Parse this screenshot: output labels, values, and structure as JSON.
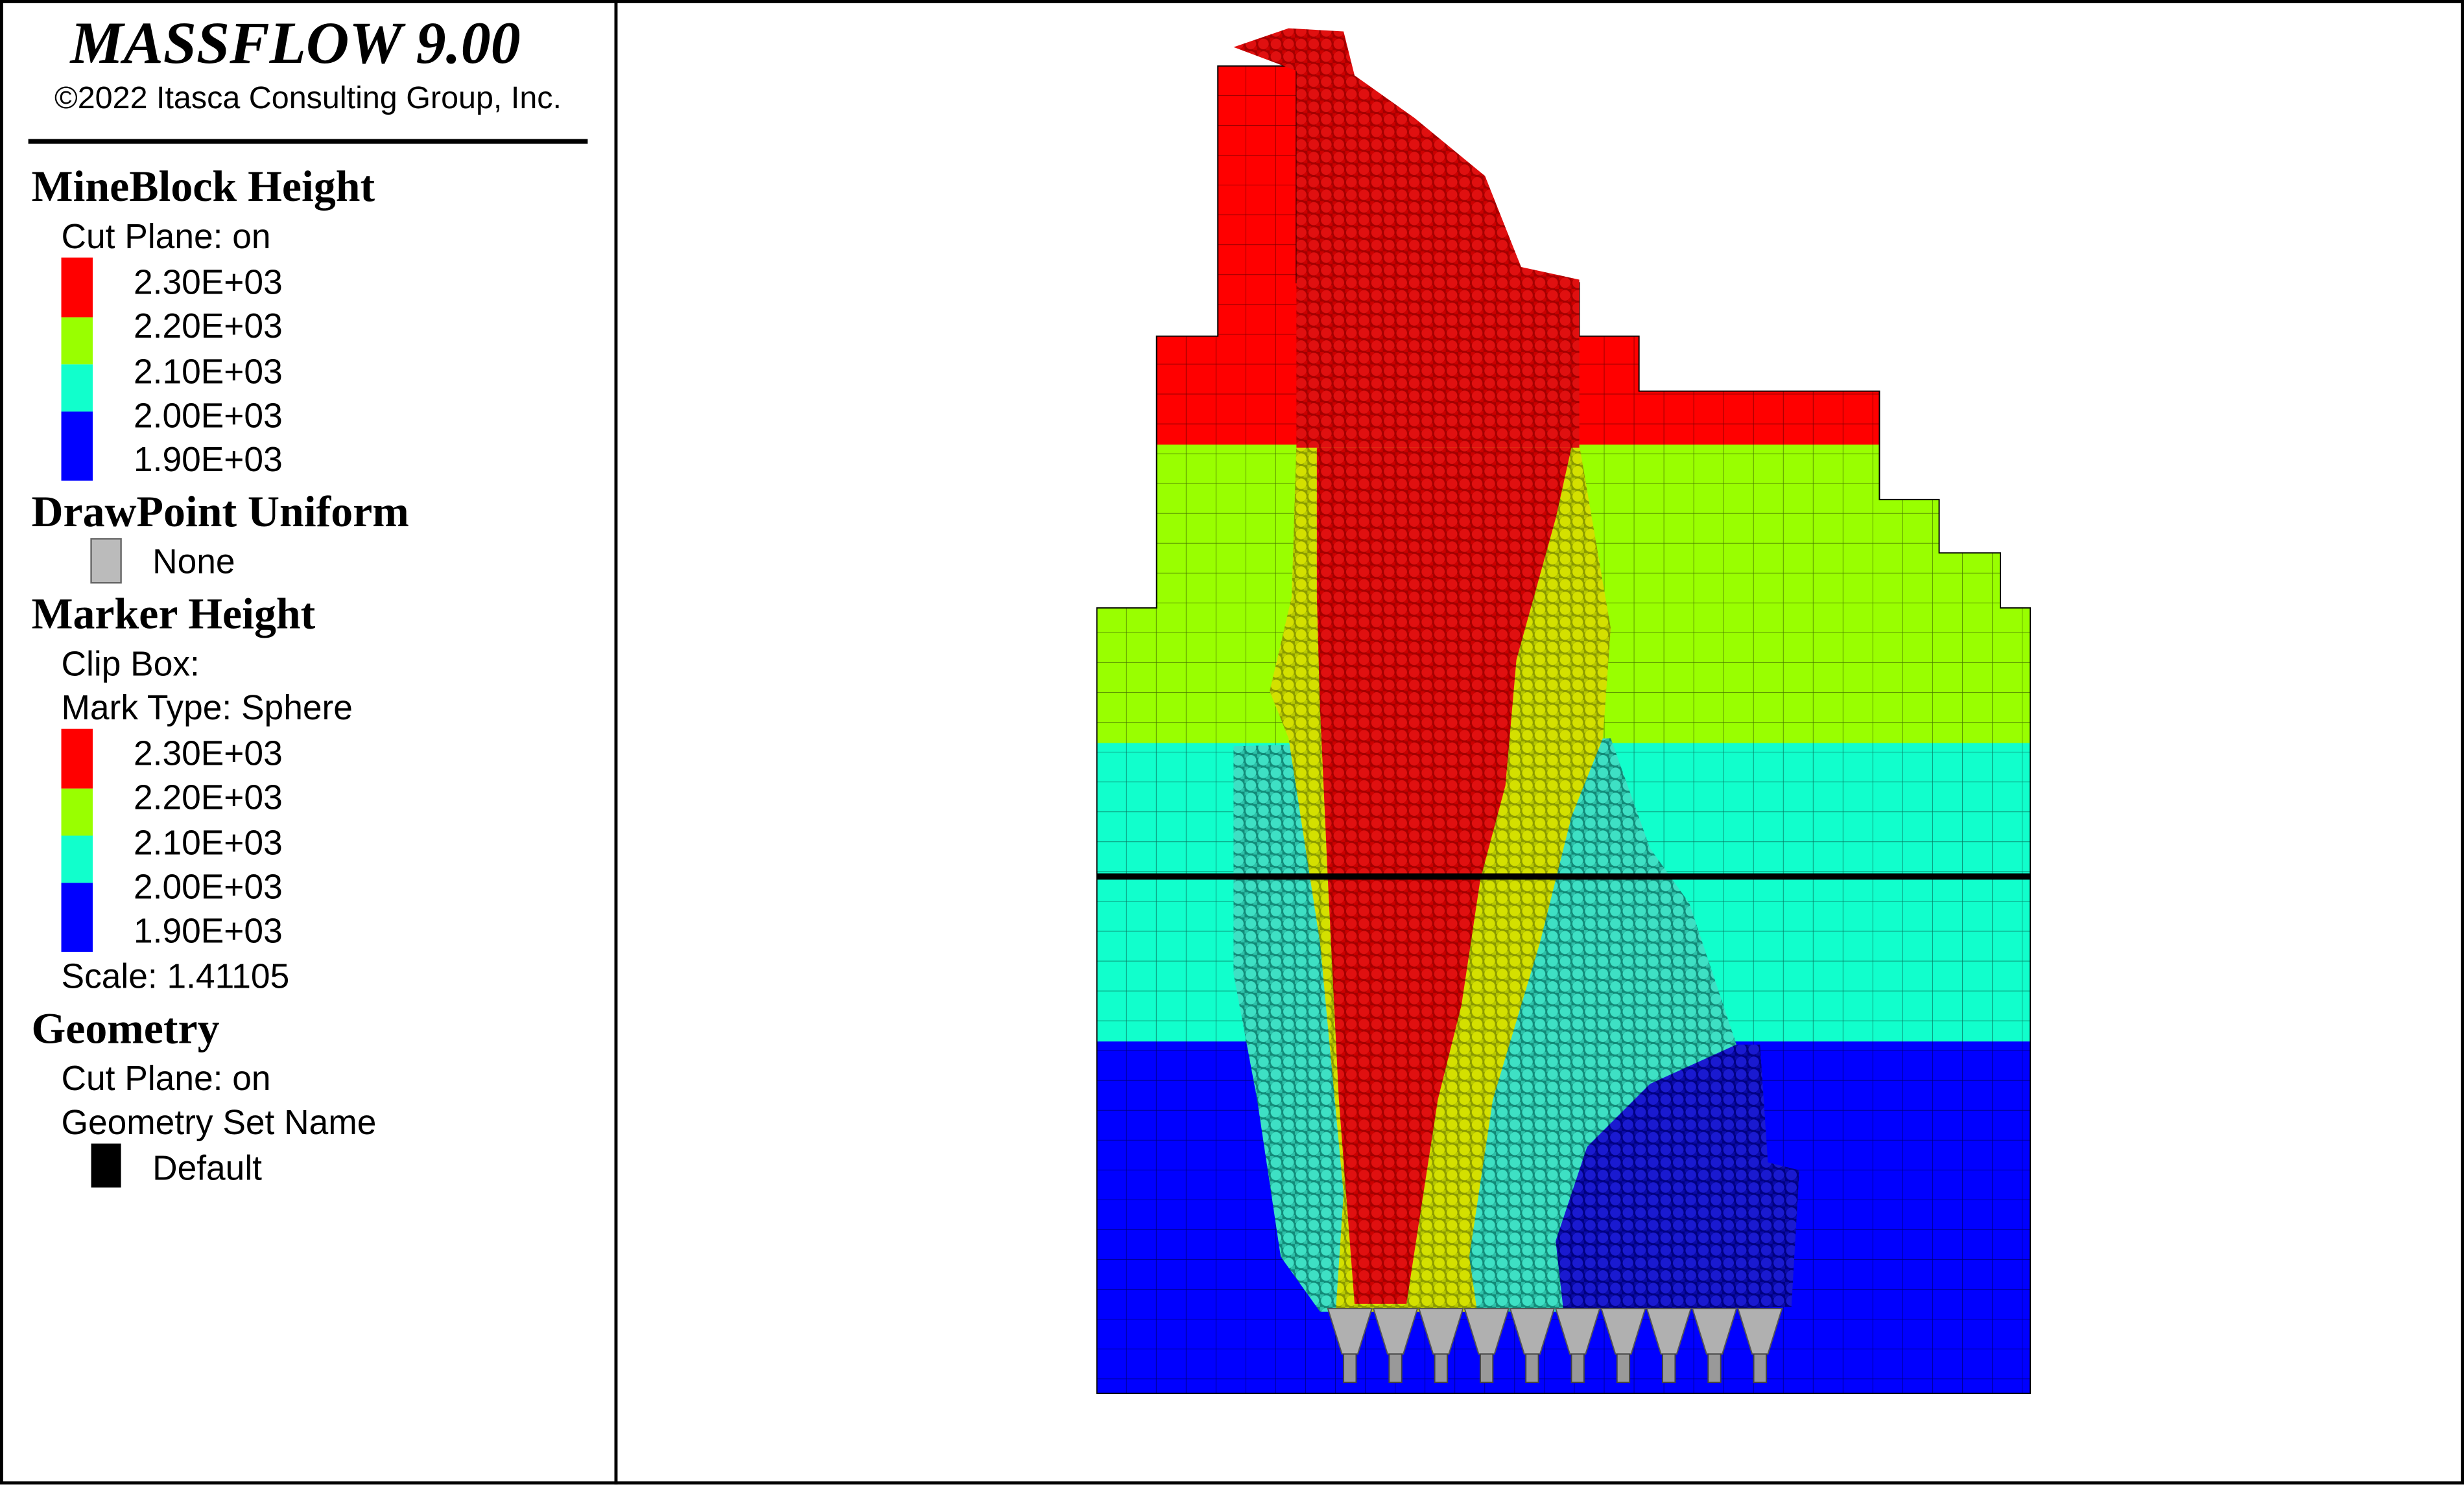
{
  "header": {
    "title": "MASSFLOW 9.00",
    "copyright": "©2022 Itasca Consulting Group, Inc."
  },
  "legend": {
    "mineblock": {
      "heading": "MineBlock Height",
      "cut_plane": "Cut Plane: on",
      "scale_labels": [
        "2.30E+03",
        "2.20E+03",
        "2.10E+03",
        "2.00E+03",
        "1.90E+03"
      ]
    },
    "drawpoint": {
      "heading": "DrawPoint Uniform",
      "item": "None"
    },
    "marker": {
      "heading": "Marker Height",
      "clip_box": "Clip Box:",
      "mark_type": "Mark Type: Sphere",
      "scale_labels": [
        "2.30E+03",
        "2.20E+03",
        "2.10E+03",
        "2.00E+03",
        "1.90E+03"
      ],
      "scale": "Scale: 1.41105"
    },
    "geometry": {
      "heading": "Geometry",
      "cut_plane": "Cut Plane: on",
      "set_name_label": "Geometry Set Name",
      "item": "Default"
    }
  }
}
